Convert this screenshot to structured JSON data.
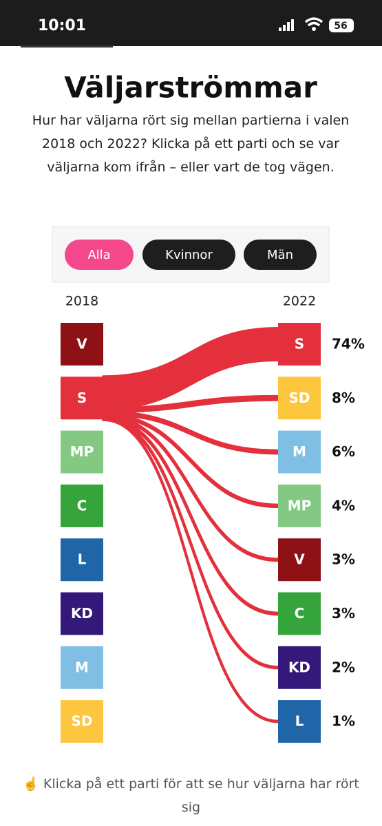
{
  "status_bar": {
    "time": "10:01",
    "battery": "56"
  },
  "header": {
    "title": "Väljarströmmar",
    "subtitle": "Hur har väljarna rört sig mellan partierna i valen 2018 och 2022? Klicka på ett parti och se var väljarna kom ifrån – eller vart de tog vägen."
  },
  "filters": {
    "options": [
      "Alla",
      "Kvinnor",
      "Män"
    ],
    "active": 0
  },
  "chart_data": {
    "type": "sankey",
    "left_title": "2018",
    "right_title": "2022",
    "left_nodes": [
      "V",
      "S",
      "MP",
      "C",
      "L",
      "KD",
      "M",
      "SD"
    ],
    "left_colors": [
      "#8e1116",
      "#e3303c",
      "#83c984",
      "#35a43b",
      "#1f65a8",
      "#34197a",
      "#7fbfe3",
      "#fdc63f"
    ],
    "selected": 1,
    "categories": [
      "S",
      "SD",
      "M",
      "MP",
      "V",
      "C",
      "KD",
      "L"
    ],
    "colors": [
      "#e3303c",
      "#fdc63f",
      "#7fbfe3",
      "#83c984",
      "#8e1116",
      "#35a43b",
      "#34197a",
      "#1f65a8"
    ],
    "values": [
      74,
      8,
      6,
      4,
      3,
      3,
      2,
      1
    ],
    "value_labels": [
      "74%",
      "8%",
      "6%",
      "4%",
      "3%",
      "3%",
      "2%",
      "1%"
    ],
    "flow_color": "#e3303c"
  },
  "footer": {
    "icon": "☝️",
    "text": "Klicka på ett parti för att se hur väljarna har rört sig"
  }
}
